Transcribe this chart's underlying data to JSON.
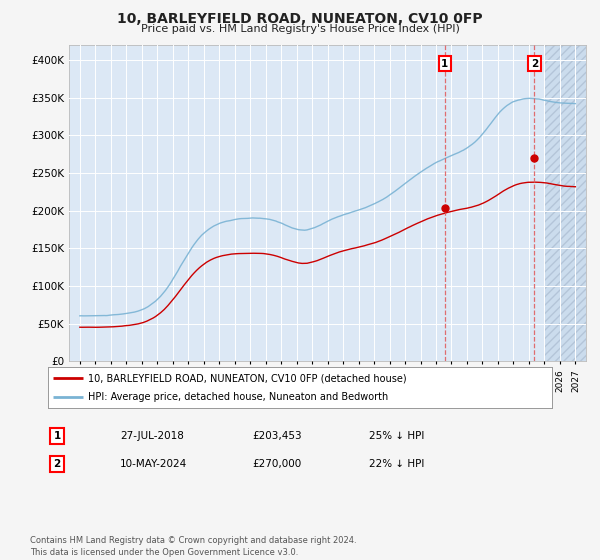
{
  "title": "10, BARLEYFIELD ROAD, NUNEATON, CV10 0FP",
  "subtitle": "Price paid vs. HM Land Registry's House Price Index (HPI)",
  "ylim": [
    0,
    420000
  ],
  "yticks": [
    0,
    50000,
    100000,
    150000,
    200000,
    250000,
    300000,
    350000,
    400000
  ],
  "ytick_labels": [
    "£0",
    "£50K",
    "£100K",
    "£150K",
    "£200K",
    "£250K",
    "£300K",
    "£350K",
    "£400K"
  ],
  "hpi_color": "#7ab3d4",
  "price_color": "#cc0000",
  "marker1_date_x": 2018.57,
  "marker1_price": 203453,
  "marker2_date_x": 2024.36,
  "marker2_price": 270000,
  "marker1_label": "1",
  "marker2_label": "2",
  "vline_color": "#e06060",
  "legend_box_label1": "10, BARLEYFIELD ROAD, NUNEATON, CV10 0FP (detached house)",
  "legend_box_label2": "HPI: Average price, detached house, Nuneaton and Bedworth",
  "table_row1": [
    "1",
    "27-JUL-2018",
    "£203,453",
    "25% ↓ HPI"
  ],
  "table_row2": [
    "2",
    "10-MAY-2024",
    "£270,000",
    "22% ↓ HPI"
  ],
  "footer": "Contains HM Land Registry data © Crown copyright and database right 2024.\nThis data is licensed under the Open Government Licence v3.0.",
  "background_plot": "#dce8f5",
  "background_fig": "#f5f5f5",
  "grid_color": "#ffffff",
  "hatch_start": 2025.0,
  "xlim_left": 1994.3,
  "xlim_right": 2027.7
}
